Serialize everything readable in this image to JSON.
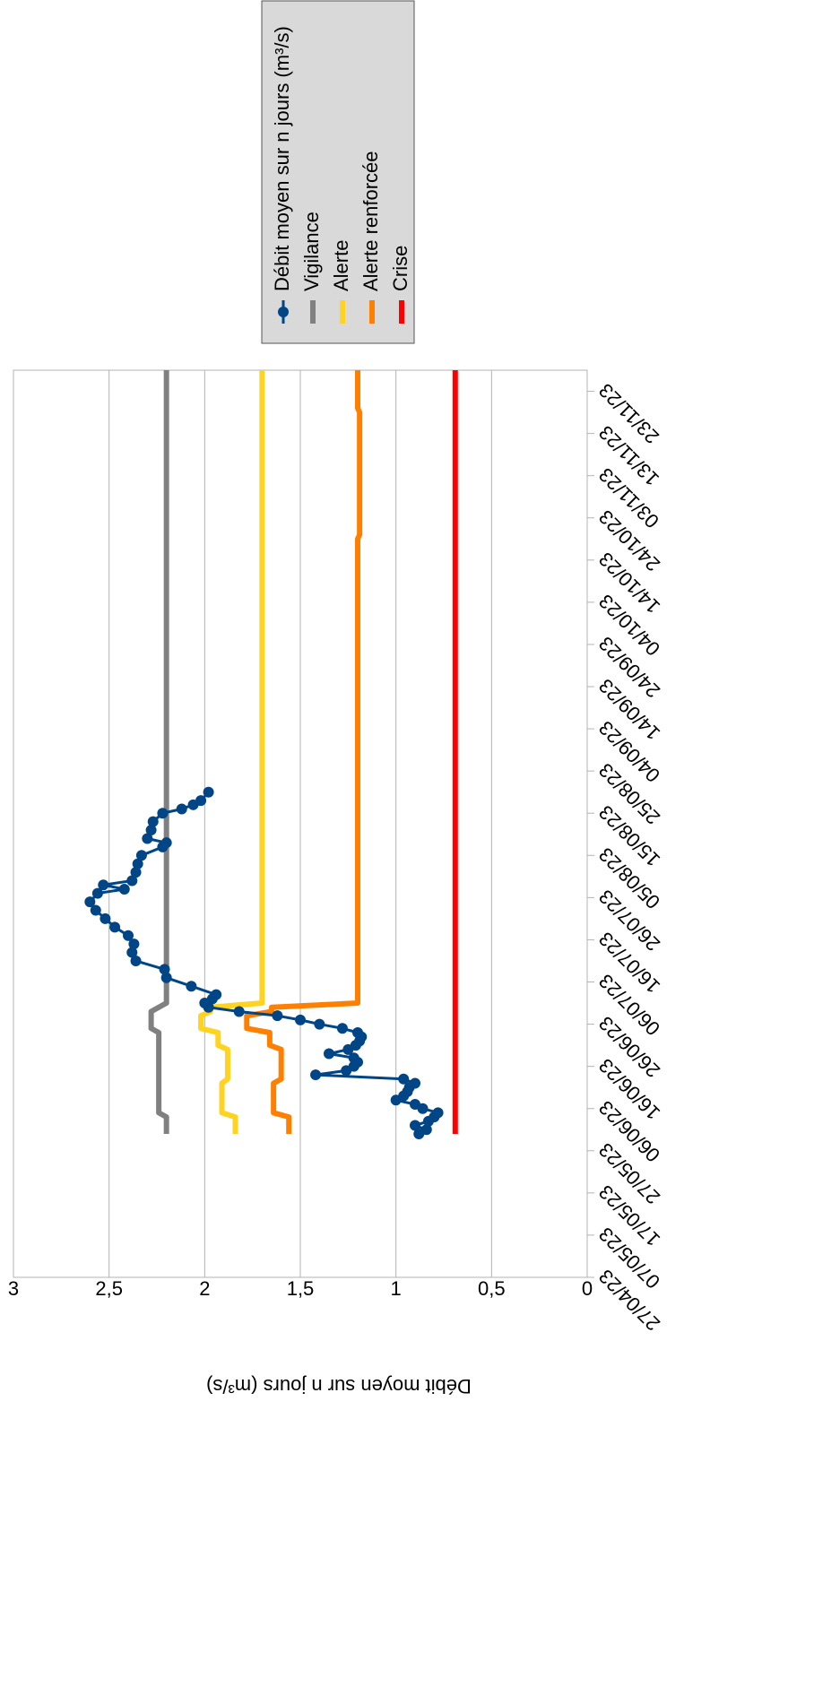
{
  "chart_data": {
    "type": "line",
    "ylabel": "Débit moyen sur n jours (m³/s)",
    "xlim": [
      "2023-04-27",
      "2023-11-28"
    ],
    "ylim": [
      0,
      3
    ],
    "yticks": [
      0,
      {
        "value": 0.5,
        "label": "0,5"
      },
      1,
      {
        "value": 1.5,
        "label": "1,5"
      },
      2,
      {
        "value": 2.5,
        "label": "2,5"
      },
      3
    ],
    "xticks": [
      {
        "value": "2023-04-27",
        "label": "27/04/23"
      },
      {
        "value": "2023-05-07",
        "label": "07/05/23"
      },
      {
        "value": "2023-05-17",
        "label": "17/05/23"
      },
      {
        "value": "2023-05-27",
        "label": "27/05/23"
      },
      {
        "value": "2023-06-06",
        "label": "06/06/23"
      },
      {
        "value": "2023-06-16",
        "label": "16/06/23"
      },
      {
        "value": "2023-06-26",
        "label": "26/06/23"
      },
      {
        "value": "2023-07-06",
        "label": "06/07/23"
      },
      {
        "value": "2023-07-16",
        "label": "16/07/23"
      },
      {
        "value": "2023-07-26",
        "label": "26/07/23"
      },
      {
        "value": "2023-08-05",
        "label": "05/08/23"
      },
      {
        "value": "2023-08-15",
        "label": "15/08/23"
      },
      {
        "value": "2023-08-25",
        "label": "25/08/23"
      },
      {
        "value": "2023-09-04",
        "label": "04/09/23"
      },
      {
        "value": "2023-09-14",
        "label": "14/09/23"
      },
      {
        "value": "2023-09-24",
        "label": "24/09/23"
      },
      {
        "value": "2023-10-04",
        "label": "04/10/23"
      },
      {
        "value": "2023-10-14",
        "label": "14/10/23"
      },
      {
        "value": "2023-10-24",
        "label": "24/10/23"
      },
      {
        "value": "2023-11-03",
        "label": "03/11/23"
      },
      {
        "value": "2023-11-13",
        "label": "13/11/23"
      },
      {
        "value": "2023-11-23",
        "label": "23/11/23"
      }
    ],
    "grid": true,
    "legend": "right",
    "series": [
      {
        "name": "Débit moyen sur n jours (m³/s)",
        "color": "#004586",
        "markers": true,
        "x": [
          "2023-05-31",
          "2023-06-01",
          "2023-06-02",
          "2023-06-03",
          "2023-06-04",
          "2023-06-05",
          "2023-06-06",
          "2023-06-07",
          "2023-06-08",
          "2023-06-09",
          "2023-06-10",
          "2023-06-11",
          "2023-06-12",
          "2023-06-13",
          "2023-06-14",
          "2023-06-15",
          "2023-06-16",
          "2023-06-17",
          "2023-06-18",
          "2023-06-19",
          "2023-06-20",
          "2023-06-21",
          "2023-06-22",
          "2023-06-23",
          "2023-06-24",
          "2023-06-25",
          "2023-06-26",
          "2023-06-27",
          "2023-06-28",
          "2023-06-29",
          "2023-06-30",
          "2023-07-01",
          "2023-07-02",
          "2023-07-03",
          "2023-07-05",
          "2023-07-07",
          "2023-07-09",
          "2023-07-11",
          "2023-07-13",
          "2023-07-15",
          "2023-07-17",
          "2023-07-19",
          "2023-07-21",
          "2023-07-23",
          "2023-07-25",
          "2023-07-27",
          "2023-07-28",
          "2023-07-29",
          "2023-07-30",
          "2023-08-01",
          "2023-08-03",
          "2023-08-05",
          "2023-08-07",
          "2023-08-08",
          "2023-08-09",
          "2023-08-11",
          "2023-08-13",
          "2023-08-15",
          "2023-08-16",
          "2023-08-17",
          "2023-08-18",
          "2023-08-20"
        ],
        "values": [
          0.88,
          0.84,
          0.9,
          0.83,
          0.8,
          0.78,
          0.86,
          0.9,
          1.0,
          0.96,
          0.94,
          0.93,
          0.9,
          0.96,
          1.42,
          1.26,
          1.22,
          1.2,
          1.22,
          1.35,
          1.25,
          1.21,
          1.19,
          1.18,
          1.2,
          1.28,
          1.4,
          1.5,
          1.62,
          1.82,
          1.98,
          2.0,
          1.96,
          1.94,
          2.07,
          2.2,
          2.21,
          2.36,
          2.38,
          2.37,
          2.4,
          2.47,
          2.52,
          2.57,
          2.6,
          2.56,
          2.42,
          2.53,
          2.38,
          2.36,
          2.35,
          2.33,
          2.22,
          2.2,
          2.3,
          2.28,
          2.27,
          2.22,
          2.12,
          2.06,
          2.02,
          1.98
        ]
      },
      {
        "name": "Vigilance",
        "color": "#808080",
        "x": [
          "2023-05-31",
          "2023-06-04",
          "2023-06-05",
          "2023-06-24",
          "2023-06-25",
          "2023-06-29",
          "2023-07-01",
          "2023-11-28"
        ],
        "values": [
          2.2,
          2.2,
          2.24,
          2.24,
          2.28,
          2.28,
          2.2,
          2.2
        ]
      },
      {
        "name": "Alerte",
        "color": "#ffd320",
        "x": [
          "2023-05-31",
          "2023-06-04",
          "2023-06-05",
          "2023-06-12",
          "2023-06-13",
          "2023-06-20",
          "2023-06-21",
          "2023-06-24",
          "2023-06-25",
          "2023-06-28",
          "2023-06-29",
          "2023-06-30",
          "2023-07-01",
          "2023-11-28"
        ],
        "values": [
          1.84,
          1.84,
          1.91,
          1.91,
          1.88,
          1.88,
          1.93,
          1.93,
          2.02,
          2.02,
          1.97,
          1.97,
          1.7,
          1.7
        ]
      },
      {
        "name": "Alerte renforcée",
        "color": "#ff8000",
        "x": [
          "2023-05-31",
          "2023-06-04",
          "2023-06-05",
          "2023-06-12",
          "2023-06-13",
          "2023-06-20",
          "2023-06-21",
          "2023-06-24",
          "2023-06-25",
          "2023-06-28",
          "2023-06-29",
          "2023-06-30",
          "2023-07-01",
          "2023-10-19",
          "2023-10-20",
          "2023-11-18",
          "2023-11-19",
          "2023-11-28"
        ],
        "values": [
          1.56,
          1.56,
          1.64,
          1.64,
          1.6,
          1.6,
          1.66,
          1.66,
          1.78,
          1.78,
          1.65,
          1.65,
          1.2,
          1.2,
          1.19,
          1.19,
          1.2,
          1.2
        ]
      },
      {
        "name": "Crise",
        "color": "#ff0000",
        "x": [
          "2023-05-31",
          "2023-11-28"
        ],
        "values": [
          0.69,
          0.69
        ]
      }
    ]
  }
}
